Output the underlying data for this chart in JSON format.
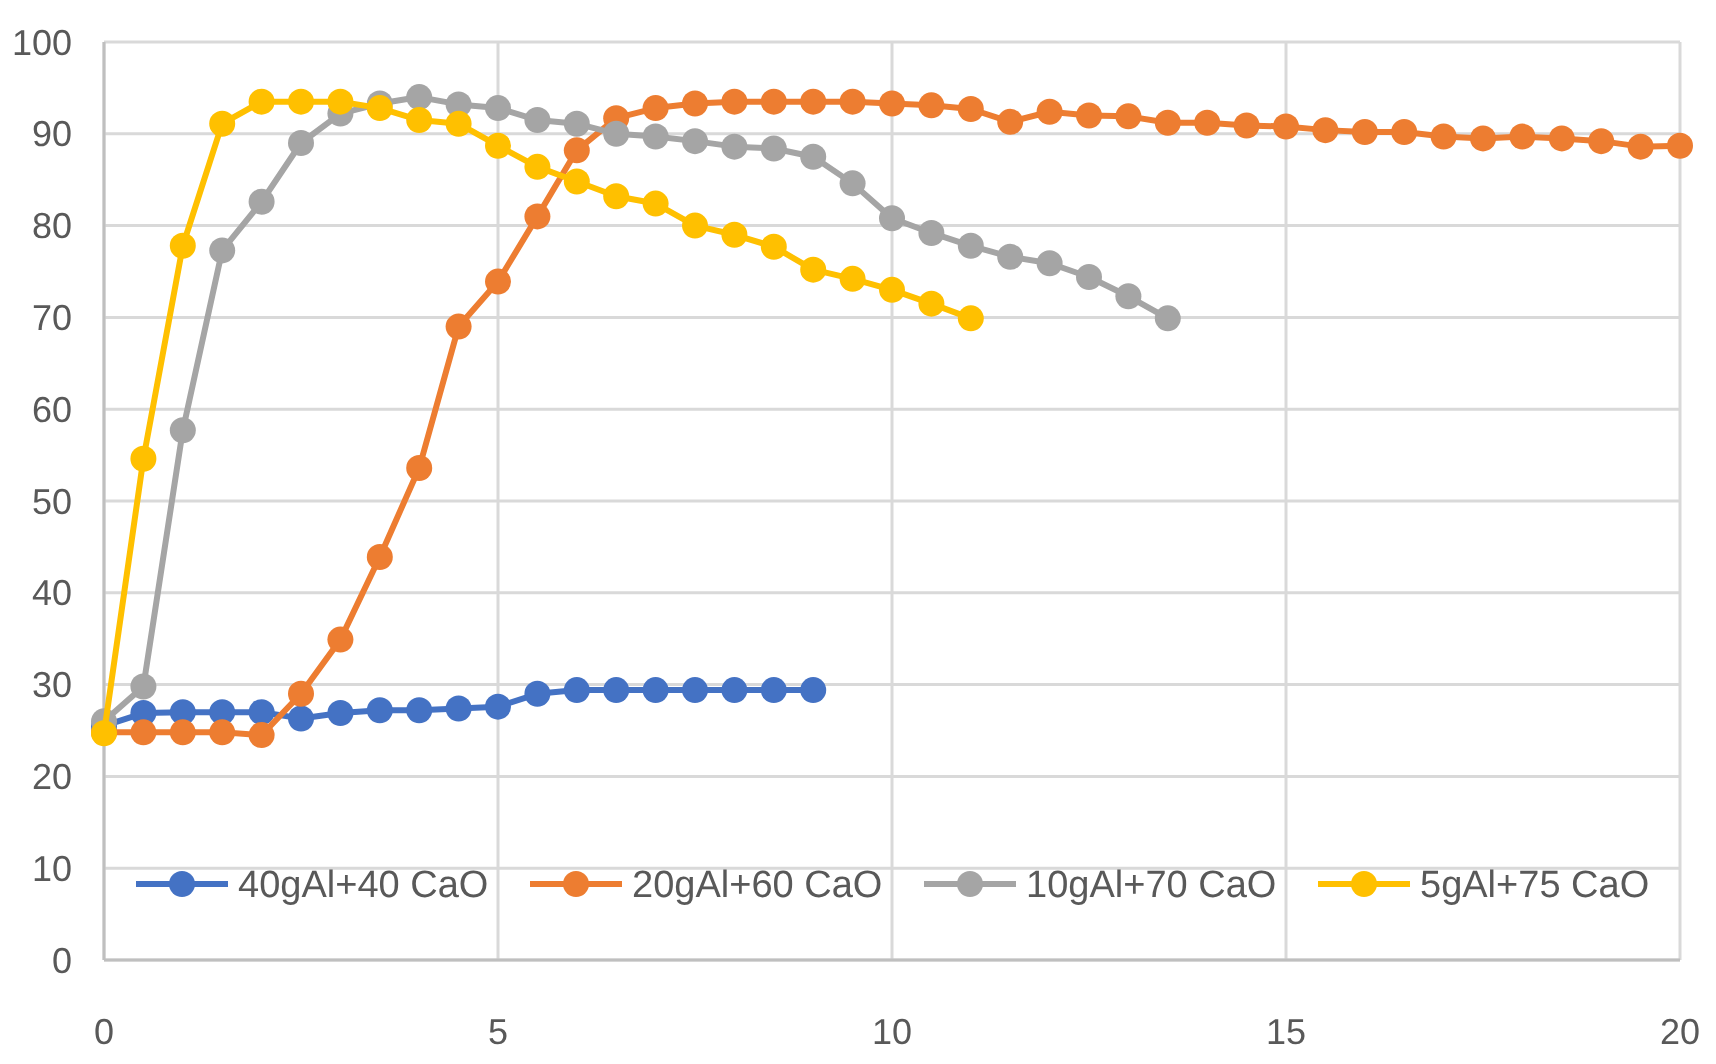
{
  "chart_data": {
    "type": "line",
    "xlim": [
      0,
      20
    ],
    "ylim": [
      0,
      100
    ],
    "xticks": [
      0,
      5,
      10,
      15,
      20
    ],
    "yticks": [
      0,
      10,
      20,
      30,
      40,
      50,
      60,
      70,
      80,
      90,
      100
    ],
    "grid": true,
    "legend": "bottom",
    "marker": "circle",
    "line_style": "solid",
    "series": [
      {
        "name": "40gAl+40 CaO",
        "color": "#4472c4",
        "x": [
          0,
          0.5,
          1,
          1.5,
          2,
          2.5,
          3,
          3.5,
          4,
          4.5,
          5,
          5.5,
          6,
          6.5,
          7,
          7.5,
          8,
          8.5,
          9
        ],
        "values": [
          25.5,
          26.9,
          27,
          27,
          27,
          26.3,
          26.9,
          27.2,
          27.2,
          27.4,
          27.6,
          29,
          29.4,
          29.4,
          29.4,
          29.4,
          29.4,
          29.4,
          29.4
        ]
      },
      {
        "name": "20gAl+60 CaO",
        "color": "#ed7d31",
        "x": [
          0,
          0.5,
          1,
          1.5,
          2,
          2.5,
          3,
          3.5,
          4,
          4.5,
          5,
          5.5,
          6,
          6.5,
          7,
          7.5,
          8,
          8.5,
          9,
          9.5,
          10,
          10.5,
          11,
          11.5,
          12,
          12.5,
          13,
          13.5,
          14,
          14.5,
          15,
          15.5,
          16,
          16.5,
          17,
          17.5,
          18,
          18.5,
          19,
          19.5,
          20
        ],
        "values": [
          24.8,
          24.8,
          24.8,
          24.8,
          24.5,
          29,
          34.9,
          43.9,
          53.6,
          69,
          73.9,
          81,
          88.2,
          91.7,
          92.8,
          93.3,
          93.5,
          93.5,
          93.5,
          93.5,
          93.3,
          93.1,
          92.7,
          91.3,
          92.4,
          92,
          91.9,
          91.2,
          91.2,
          90.9,
          90.8,
          90.4,
          90.2,
          90.2,
          89.7,
          89.5,
          89.7,
          89.5,
          89.2,
          88.6,
          88.7
        ]
      },
      {
        "name": "10gAl+70 CaO",
        "color": "#a5a5a5",
        "x": [
          0,
          0.5,
          1,
          1.5,
          2,
          2.5,
          3,
          3.5,
          4,
          4.5,
          5,
          5.5,
          6,
          6.5,
          7,
          7.5,
          8,
          8.5,
          9,
          9.5,
          10,
          10.5,
          11,
          11.5,
          12,
          12.5,
          13,
          13.5
        ],
        "values": [
          26,
          29.8,
          57.7,
          77.3,
          82.6,
          89,
          92.2,
          93.3,
          94,
          93.2,
          92.8,
          91.5,
          91.1,
          90,
          89.7,
          89.2,
          88.6,
          88.4,
          87.5,
          84.6,
          80.8,
          79.2,
          77.8,
          76.6,
          75.9,
          74.4,
          72.3,
          69.9
        ]
      },
      {
        "name": "5gAl+75 CaO",
        "color": "#ffc000",
        "x": [
          0,
          0.5,
          1,
          1.5,
          2,
          2.5,
          3,
          3.5,
          4,
          4.5,
          5,
          5.5,
          6,
          6.5,
          7,
          7.5,
          8,
          8.5,
          9,
          9.5,
          10,
          10.5,
          11
        ],
        "values": [
          24.7,
          54.6,
          77.8,
          91.1,
          93.5,
          93.5,
          93.5,
          92.8,
          91.5,
          91.1,
          88.7,
          86.4,
          84.8,
          83.2,
          82.4,
          80,
          79,
          77.7,
          75.2,
          74.2,
          73,
          71.5,
          69.9
        ]
      }
    ]
  }
}
